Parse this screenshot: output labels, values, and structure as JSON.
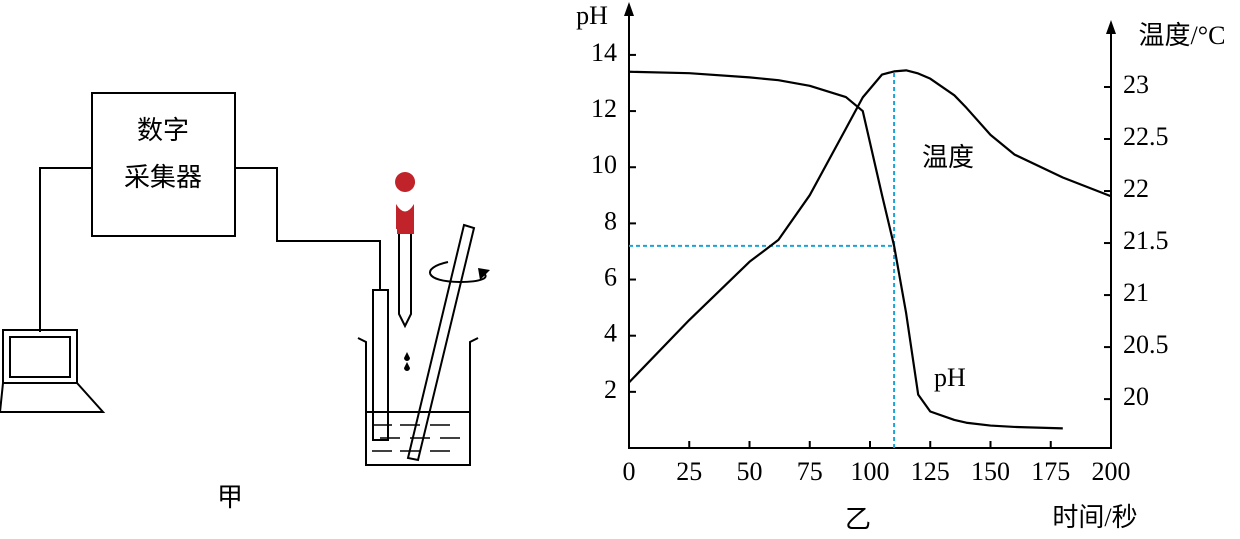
{
  "diagram": {
    "device_label": [
      "数字",
      "采集器"
    ],
    "caption": "甲"
  },
  "chart_data": {
    "type": "line",
    "caption": "乙",
    "xlabel": "时间/秒",
    "ylabel": "pH",
    "y2label": "温度/°C",
    "x": [
      0,
      25,
      50,
      62,
      75,
      90,
      97,
      105,
      110,
      115,
      120,
      125,
      135,
      140,
      150,
      160,
      180,
      200
    ],
    "series": [
      {
        "name": "pH",
        "color": "#000000",
        "values": [
          13.4,
          13.35,
          13.2,
          13.1,
          12.9,
          12.5,
          12.0,
          9.0,
          7.2,
          4.8,
          1.9,
          1.3,
          1.0,
          0.9,
          0.8,
          0.75,
          0.7,
          null
        ]
      },
      {
        "name": "温度",
        "color": "#000000",
        "axis": "y2",
        "values": [
          20.16,
          20.76,
          21.32,
          21.53,
          21.96,
          22.6,
          22.9,
          23.12,
          23.15,
          23.16,
          23.13,
          23.08,
          22.92,
          22.8,
          22.54,
          22.35,
          22.13,
          21.95
        ]
      }
    ],
    "xlim": [
      0,
      200
    ],
    "xticks": [
      0,
      25,
      50,
      75,
      100,
      125,
      150,
      175,
      200
    ],
    "ylim": [
      0,
      15.6
    ],
    "yticks": [
      2,
      4,
      6,
      8,
      10,
      12,
      14
    ],
    "y2lim": [
      19.53,
      23.74
    ],
    "y2ticks": [
      20,
      20.5,
      21,
      21.5,
      22,
      22.5,
      23
    ],
    "guide_color": "#1aa3d9",
    "grid": false
  }
}
